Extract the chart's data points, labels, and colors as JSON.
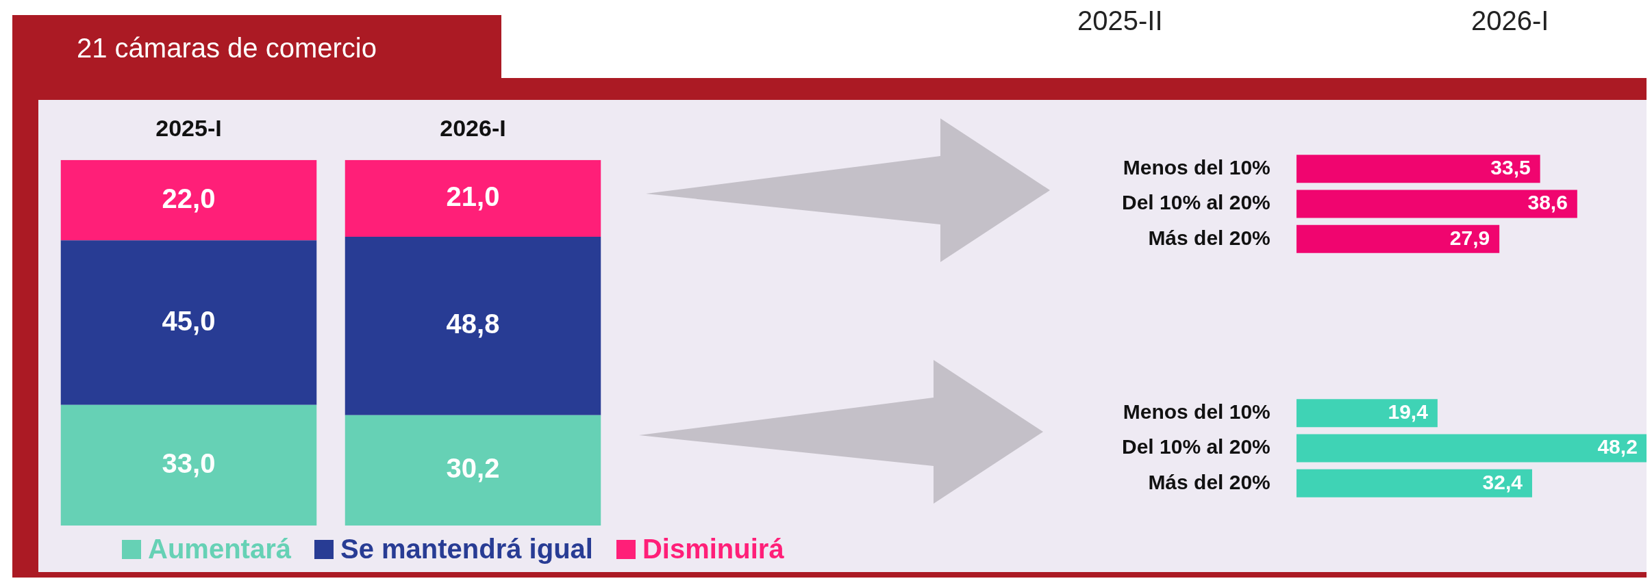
{
  "chart_data": [
    {
      "type": "bar",
      "title": "21 cámaras de comercio",
      "annotations": [
        "2025-II",
        "2026-I"
      ],
      "categories": [
        "2025-I",
        "2026-I"
      ],
      "stacked": true,
      "ylim": [
        0,
        100
      ],
      "tick_labels": "x",
      "legend": "bottom",
      "series": [
        {
          "name": "Aumentará",
          "color": "#66d1b5",
          "values": [
            33.0,
            30.2
          ],
          "value_labels": [
            "33,0",
            "30,2"
          ]
        },
        {
          "name": "Se mantendrá igual",
          "color": "#283c94",
          "values": [
            45.0,
            48.8
          ],
          "value_labels": [
            "45,0",
            "48,8"
          ]
        },
        {
          "name": "Disminuirá",
          "color": "#ff1f78",
          "values": [
            22.0,
            21.0
          ],
          "value_labels": [
            "22,0",
            "21,0"
          ]
        }
      ]
    },
    {
      "type": "bar",
      "orientation": "horizontal",
      "categories": [
        "Menos del 10%",
        "Del 10% al 20%",
        "Más del 20%"
      ],
      "values": [
        33.5,
        38.6,
        27.9
      ],
      "value_labels": [
        "33,5",
        "38,6",
        "27,9"
      ],
      "color": "#f0056f",
      "xlim": [
        0,
        48.5
      ],
      "tick_labels": "y"
    },
    {
      "type": "bar",
      "orientation": "horizontal",
      "categories": [
        "Menos del 10%",
        "Del 10% al 20%",
        "Más del 20%"
      ],
      "values": [
        19.4,
        48.2,
        32.4
      ],
      "value_labels": [
        "19,4",
        "48,2",
        "32,4"
      ],
      "color": "#3fd3b5",
      "xlim": [
        0,
        48.5
      ],
      "tick_labels": "y"
    }
  ]
}
